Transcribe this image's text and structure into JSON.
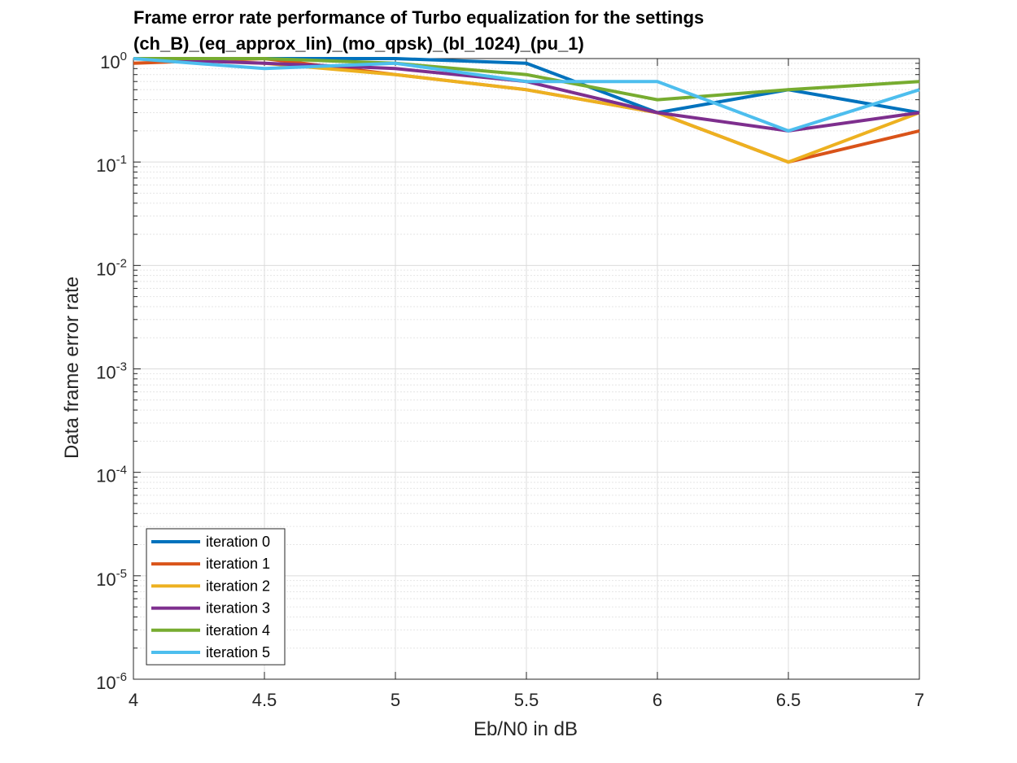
{
  "chart_data": {
    "type": "line",
    "title_lines": [
      "Frame error rate performance of Turbo equalization for the settings",
      "(ch_B)_(eq_approx_lin)_(mo_qpsk)_(bl_1024)_(pu_1)"
    ],
    "xlabel": "Eb/N0 in dB",
    "ylabel": "Data frame error rate",
    "x": [
      4,
      4.5,
      5,
      5.5,
      6,
      6.5,
      7
    ],
    "xlim": [
      4,
      7
    ],
    "ylim": [
      1e-06,
      1
    ],
    "yscale": "log",
    "grid": true,
    "legend_position": "bottom-left",
    "x_ticks": [
      "4",
      "4.5",
      "5",
      "5.5",
      "6",
      "6.5",
      "7"
    ],
    "y_ticks": [
      {
        "base": "10",
        "exp": "0"
      },
      {
        "base": "10",
        "exp": "-1"
      },
      {
        "base": "10",
        "exp": "-2"
      },
      {
        "base": "10",
        "exp": "-3"
      },
      {
        "base": "10",
        "exp": "-4"
      },
      {
        "base": "10",
        "exp": "-5"
      },
      {
        "base": "10",
        "exp": "-6"
      }
    ],
    "series": [
      {
        "name": "iteration 0",
        "color": "#0072BD",
        "values": [
          1.0,
          1.0,
          1.0,
          0.9,
          0.3,
          0.5,
          0.3
        ]
      },
      {
        "name": "iteration 1",
        "color": "#D95319",
        "values": [
          0.9,
          1.0,
          0.7,
          0.5,
          0.3,
          0.1,
          0.2
        ]
      },
      {
        "name": "iteration 2",
        "color": "#EDB120",
        "values": [
          1.0,
          0.9,
          0.7,
          0.5,
          0.3,
          0.1,
          0.3
        ]
      },
      {
        "name": "iteration 3",
        "color": "#7E2F8E",
        "values": [
          1.0,
          0.9,
          0.8,
          0.6,
          0.3,
          0.2,
          0.3
        ]
      },
      {
        "name": "iteration 4",
        "color": "#77AC30",
        "values": [
          1.0,
          1.0,
          0.9,
          0.7,
          0.4,
          0.5,
          0.6
        ]
      },
      {
        "name": "iteration 5",
        "color": "#4DBEEE",
        "values": [
          1.0,
          0.8,
          0.9,
          0.6,
          0.6,
          0.2,
          0.5
        ]
      }
    ]
  }
}
